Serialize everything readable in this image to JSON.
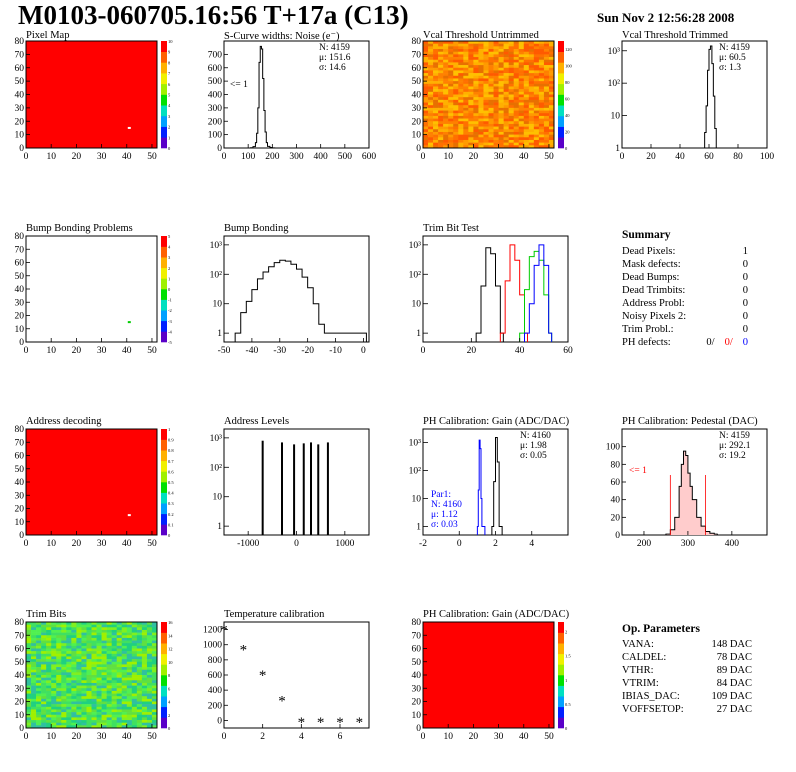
{
  "page": {
    "title": "M0103-060705.16:56 T+17a (C13)",
    "date": "Sun Nov  2 12:56:28 2008"
  },
  "colors": {
    "red": "#ff0000",
    "blue": "#0000ff",
    "green": "#00cc00",
    "black": "#000000"
  },
  "chart_data": [
    {
      "type": "heatmap",
      "title": "Pixel Map",
      "xlabel": "",
      "ylabel": "",
      "xlim": [
        0,
        52
      ],
      "ylim": [
        0,
        80
      ],
      "xticks": [
        0,
        10,
        20,
        30,
        40,
        50
      ],
      "yticks": [
        0,
        10,
        20,
        30,
        40,
        50,
        60,
        70,
        80
      ],
      "fill": "uniform-red",
      "outliers": [
        {
          "x": 41,
          "y": 15,
          "color": "white"
        }
      ],
      "zticks": [
        0,
        1,
        2,
        3,
        4,
        5,
        6,
        7,
        8,
        9,
        10
      ],
      "zlim": [
        0,
        10
      ]
    },
    {
      "type": "histogram",
      "title": "S-Curve widths: Noise (e⁻)",
      "xlim": [
        0,
        600
      ],
      "ylim": [
        0,
        800
      ],
      "xticks": [
        0,
        100,
        200,
        300,
        400,
        500,
        600
      ],
      "yticks": [
        0,
        100,
        200,
        300,
        400,
        500,
        600,
        700
      ],
      "stats": {
        "N": "4159",
        "mu": "151.6",
        "sigma": "14.6"
      },
      "annotation": "<= 1",
      "series": [
        {
          "x": [
            100,
            110,
            120,
            130,
            135,
            140,
            145,
            150,
            155,
            160,
            165,
            170,
            175,
            180,
            190,
            200,
            210
          ],
          "values": [
            0,
            2,
            10,
            40,
            110,
            300,
            640,
            760,
            740,
            520,
            280,
            120,
            40,
            12,
            4,
            1,
            0
          ]
        }
      ]
    },
    {
      "type": "heatmap",
      "title": "Vcal Threshold Untrimmed",
      "xlim": [
        0,
        52
      ],
      "ylim": [
        0,
        80
      ],
      "xticks": [
        0,
        10,
        20,
        30,
        40,
        50
      ],
      "yticks": [
        0,
        10,
        20,
        30,
        40,
        50,
        60,
        70,
        80
      ],
      "fill": "noisy-orange",
      "zticks": [
        0,
        20,
        40,
        60,
        80,
        100,
        120
      ],
      "zlim": [
        0,
        130
      ]
    },
    {
      "type": "histogram",
      "title": "Vcal Threshold Trimmed",
      "xlim": [
        0,
        100
      ],
      "ylim": [
        1,
        2000
      ],
      "log": true,
      "xticks": [
        0,
        20,
        40,
        60,
        80,
        100
      ],
      "ytick_labels": [
        "1",
        "10",
        "10²",
        "10³"
      ],
      "stats": {
        "N": "4159",
        "mu": "60.5",
        "sigma": "1.3"
      },
      "series": [
        {
          "x": [
            56,
            57,
            58,
            59,
            60,
            61,
            62,
            63,
            64,
            65
          ],
          "values": [
            1,
            3,
            20,
            250,
            1100,
            1400,
            400,
            40,
            4,
            1
          ]
        }
      ]
    },
    {
      "type": "heatmap",
      "title": "Bump Bonding Problems",
      "xlim": [
        0,
        52
      ],
      "ylim": [
        0,
        80
      ],
      "xticks": [
        0,
        10,
        20,
        30,
        40,
        50
      ],
      "yticks": [
        0,
        10,
        20,
        30,
        40,
        50,
        60,
        70,
        80
      ],
      "fill": "empty",
      "outliers": [
        {
          "x": 41,
          "y": 15,
          "color": "green"
        }
      ],
      "zticks": [
        -5,
        -4,
        -3,
        -2,
        -1,
        0,
        1,
        2,
        3,
        4,
        5
      ],
      "zlim": [
        -5,
        5
      ]
    },
    {
      "type": "histogram",
      "title": "Bump Bonding",
      "xlim": [
        -50,
        2
      ],
      "ylim": [
        0.5,
        2000
      ],
      "log": true,
      "xticks": [
        -50,
        -40,
        -30,
        -20,
        -10,
        0
      ],
      "ytick_labels": [
        "1",
        "10",
        "10²",
        "10³"
      ],
      "series": [
        {
          "x": [
            -46,
            -44,
            -42,
            -40,
            -38,
            -36,
            -34,
            -32,
            -30,
            -28,
            -26,
            -24,
            -22,
            -20,
            -18,
            -16,
            -14,
            -6,
            0
          ],
          "values": [
            1,
            5,
            12,
            30,
            70,
            120,
            180,
            250,
            300,
            280,
            220,
            150,
            80,
            35,
            10,
            2,
            1,
            1,
            1
          ]
        }
      ]
    },
    {
      "type": "histogram",
      "title": "Trim Bit Test",
      "xlim": [
        0,
        60
      ],
      "ylim": [
        0.5,
        2000
      ],
      "log": true,
      "xticks": [
        0,
        20,
        40,
        60
      ],
      "ytick_labels": [
        "1",
        "10",
        "10²",
        "10³"
      ],
      "series": [
        {
          "color": "black",
          "x": [
            22,
            24,
            26,
            28,
            30,
            32
          ],
          "values": [
            1,
            40,
            800,
            500,
            40,
            1
          ]
        },
        {
          "color": "red",
          "x": [
            32,
            34,
            36,
            38,
            40,
            42
          ],
          "values": [
            1,
            60,
            1000,
            300,
            20,
            1
          ]
        },
        {
          "color": "green",
          "x": [
            40,
            42,
            44,
            46,
            48,
            50,
            52
          ],
          "values": [
            1,
            30,
            400,
            600,
            300,
            20,
            1
          ]
        },
        {
          "color": "blue",
          "x": [
            42,
            44,
            46,
            48,
            50,
            52
          ],
          "values": [
            1,
            10,
            200,
            1000,
            200,
            1
          ]
        }
      ]
    },
    {
      "type": "heatmap",
      "title": "Address decoding",
      "xlim": [
        0,
        52
      ],
      "ylim": [
        0,
        80
      ],
      "xticks": [
        0,
        10,
        20,
        30,
        40,
        50
      ],
      "yticks": [
        0,
        10,
        20,
        30,
        40,
        50,
        60,
        70,
        80
      ],
      "fill": "uniform-red",
      "outliers": [
        {
          "x": 41,
          "y": 15,
          "color": "white"
        }
      ],
      "zticks": [
        0,
        0.1,
        0.2,
        0.3,
        0.4,
        0.5,
        0.6,
        0.7,
        0.8,
        0.9,
        1
      ],
      "zlim": [
        0,
        1
      ]
    },
    {
      "type": "histogram",
      "title": "Address Levels",
      "xlim": [
        -1500,
        1500
      ],
      "ylim": [
        0.5,
        2000
      ],
      "log": true,
      "xticks": [
        -1000,
        0,
        1000
      ],
      "ytick_labels": [
        "1",
        "10",
        "10²",
        "10³"
      ],
      "series": [
        {
          "x": [
            -700,
            -300,
            -50,
            150,
            300,
            450,
            650
          ],
          "values": [
            800,
            700,
            600,
            650,
            700,
            600,
            700
          ]
        }
      ]
    },
    {
      "type": "histogram",
      "title": "PH Calibration: Gain (ADC/DAC)",
      "xlim": [
        -2,
        6
      ],
      "ylim": [
        0.5,
        3000
      ],
      "log": true,
      "xticks": [
        -2,
        0,
        2,
        4
      ],
      "ytick_labels": [
        "1",
        "10",
        "10²",
        "10³"
      ],
      "stats": {
        "N": "4160",
        "mu": "1.98",
        "sigma": "0.05"
      },
      "stats2": {
        "label": "Par1:",
        "N": "4160",
        "mu": "1.12",
        "sigma": "0.03"
      },
      "series": [
        {
          "color": "black",
          "x": [
            1.8,
            1.9,
            2.0,
            2.1,
            2.2
          ],
          "values": [
            1,
            40,
            1500,
            200,
            1
          ]
        },
        {
          "color": "blue",
          "x": [
            1.0,
            1.05,
            1.1,
            1.15,
            1.2,
            1.25
          ],
          "values": [
            1,
            20,
            1200,
            600,
            10,
            1
          ]
        }
      ]
    },
    {
      "type": "histogram",
      "title": "PH Calibration: Pedestal (DAC)",
      "xlim": [
        150,
        480
      ],
      "ylim": [
        0,
        120
      ],
      "xticks": [
        200,
        300,
        400
      ],
      "yticks": [
        0,
        20,
        40,
        60,
        80,
        100
      ],
      "stats": {
        "N": "4159",
        "mu": "292.1",
        "sigma": "19.2"
      },
      "annotation": "<= 1",
      "series": [
        {
          "x": [
            250,
            260,
            270,
            280,
            285,
            290,
            295,
            300,
            305,
            310,
            320,
            330,
            340,
            350,
            360
          ],
          "values": [
            1,
            6,
            20,
            55,
            80,
            95,
            90,
            70,
            55,
            40,
            20,
            10,
            4,
            2,
            1
          ]
        }
      ]
    },
    {
      "type": "heatmap",
      "title": "Trim Bits",
      "xlim": [
        0,
        52
      ],
      "ylim": [
        0,
        80
      ],
      "xticks": [
        0,
        10,
        20,
        30,
        40,
        50
      ],
      "yticks": [
        0,
        10,
        20,
        30,
        40,
        50,
        60,
        70,
        80
      ],
      "fill": "noisy-green",
      "zticks": [
        0,
        2,
        4,
        6,
        8,
        10,
        12,
        14,
        16
      ],
      "zlim": [
        0,
        16
      ]
    },
    {
      "type": "scatter",
      "title": "Temperature calibration",
      "xlim": [
        0,
        7.5
      ],
      "ylim": [
        -100,
        1300
      ],
      "xticks": [
        0,
        2,
        4,
        6
      ],
      "yticks": [
        0,
        200,
        400,
        600,
        800,
        1000,
        1200
      ],
      "marker": "*",
      "x": [
        0,
        1,
        2,
        3,
        4,
        5,
        6,
        7
      ],
      "y": [
        1200,
        940,
        600,
        260,
        -20,
        -20,
        -20,
        -20
      ]
    },
    {
      "type": "heatmap",
      "title": "PH Calibration: Gain (ADC/DAC)",
      "xlim": [
        0,
        52
      ],
      "ylim": [
        0,
        80
      ],
      "xticks": [
        0,
        10,
        20,
        30,
        40,
        50
      ],
      "yticks": [
        0,
        10,
        20,
        30,
        40,
        50,
        60,
        70,
        80
      ],
      "fill": "uniform-red",
      "zticks": [
        0,
        0.5,
        1,
        1.5,
        2
      ],
      "zlim": [
        0,
        2.2
      ]
    }
  ],
  "summary": {
    "title": "Summary",
    "rows": [
      {
        "label": "Dead Pixels:",
        "value": "1"
      },
      {
        "label": "Mask defects:",
        "value": "0"
      },
      {
        "label": "Dead Bumps:",
        "value": "0"
      },
      {
        "label": "Dead Trimbits:",
        "value": "0"
      },
      {
        "label": "Address Probl:",
        "value": "0"
      },
      {
        "label": "Noisy Pixels 2:",
        "value": "0"
      },
      {
        "label": "Trim Probl.:",
        "value": "0"
      }
    ],
    "ph_label": "PH defects:",
    "ph_values": [
      "0/",
      "0/",
      "0"
    ]
  },
  "params": {
    "title": "Op. Parameters",
    "rows": [
      {
        "label": "VANA:",
        "value": "148 DAC"
      },
      {
        "label": "CALDEL:",
        "value": "78 DAC"
      },
      {
        "label": "VTHR:",
        "value": "89 DAC"
      },
      {
        "label": "VTRIM:",
        "value": "84 DAC"
      },
      {
        "label": "IBIAS_DAC:",
        "value": "109 DAC"
      },
      {
        "label": "VOFFSETOP:",
        "value": "27 DAC"
      }
    ]
  }
}
